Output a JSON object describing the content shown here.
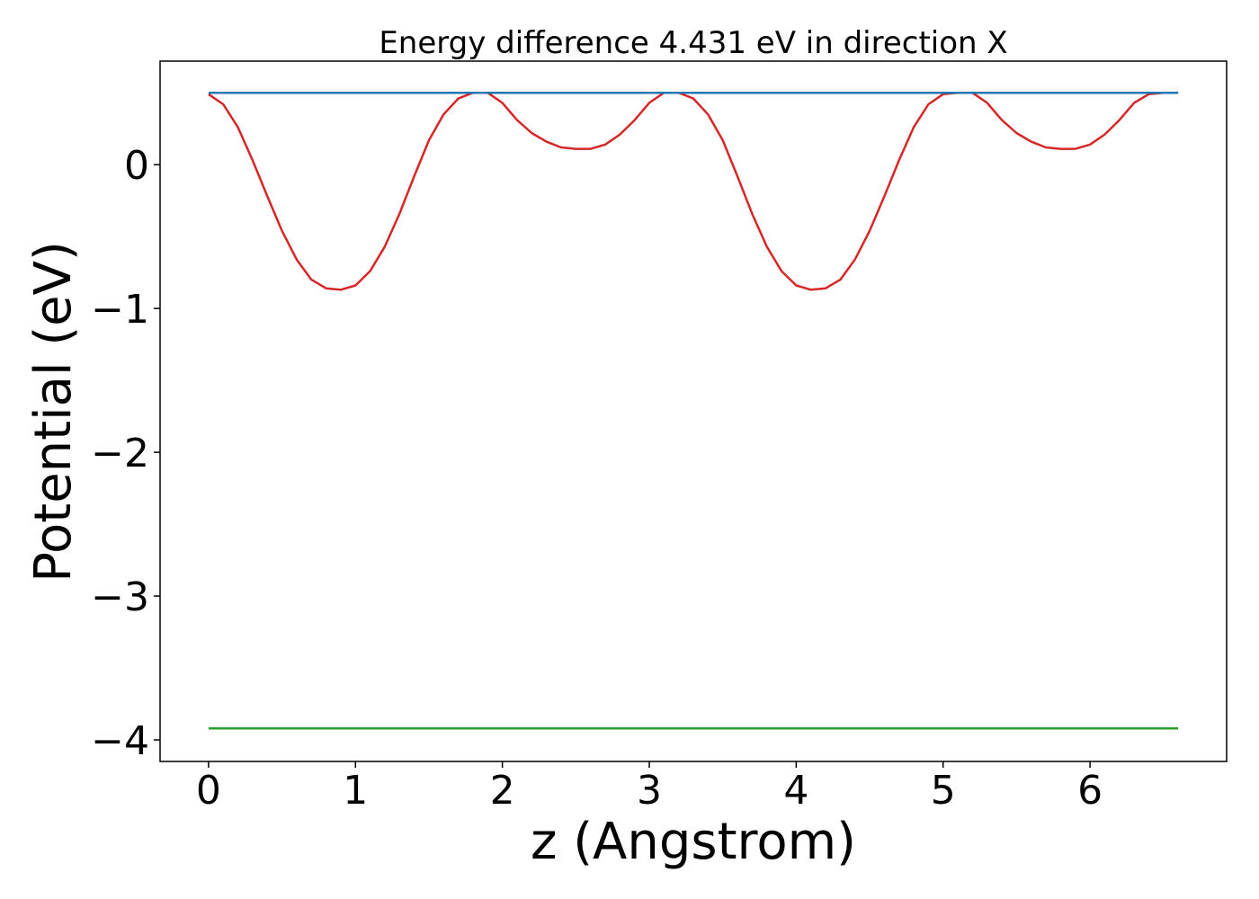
{
  "chart_data": {
    "type": "line",
    "title": "Energy difference 4.431 eV in direction X",
    "xlabel": "z (Angstrom)",
    "ylabel": "Potential (eV)",
    "xlim": [
      -0.33,
      6.93
    ],
    "ylim": [
      -4.15,
      0.72
    ],
    "xticks": [
      0,
      1,
      2,
      3,
      4,
      5,
      6
    ],
    "xtick_labels": [
      "0",
      "1",
      "2",
      "3",
      "4",
      "5",
      "6"
    ],
    "yticks": [
      0,
      -1,
      -2,
      -3,
      -4
    ],
    "ytick_labels": [
      "0",
      "−1",
      "−2",
      "−3",
      "−4"
    ],
    "grid": false,
    "series": [
      {
        "color": "#d62728",
        "x": [
          0.0,
          0.1,
          0.2,
          0.3,
          0.4,
          0.5,
          0.6,
          0.7,
          0.8,
          0.9,
          1.0,
          1.1,
          1.2,
          1.3,
          1.4,
          1.5,
          1.6,
          1.7,
          1.8,
          1.9,
          2.0,
          2.1,
          2.2,
          2.3,
          2.4,
          2.5,
          2.6,
          2.7,
          2.8,
          2.9,
          3.0,
          3.1,
          3.2,
          3.3,
          3.4,
          3.5,
          3.6,
          3.7,
          3.8,
          3.9,
          4.0,
          4.1,
          4.2,
          4.3,
          4.4,
          4.5,
          4.6,
          4.7,
          4.8,
          4.9,
          5.0,
          5.1,
          5.2,
          5.3,
          5.4,
          5.5,
          5.6,
          5.7,
          5.8,
          5.9,
          6.0,
          6.1,
          6.2,
          6.3,
          6.4,
          6.5,
          6.6
        ],
        "y": [
          0.49,
          0.42,
          0.26,
          0.03,
          -0.22,
          -0.46,
          -0.66,
          -0.8,
          -0.86,
          -0.87,
          -0.84,
          -0.74,
          -0.57,
          -0.34,
          -0.08,
          0.17,
          0.35,
          0.46,
          0.5,
          0.5,
          0.43,
          0.31,
          0.22,
          0.16,
          0.12,
          0.11,
          0.11,
          0.14,
          0.21,
          0.31,
          0.43,
          0.5,
          0.5,
          0.46,
          0.35,
          0.17,
          -0.08,
          -0.34,
          -0.57,
          -0.74,
          -0.84,
          -0.87,
          -0.86,
          -0.8,
          -0.66,
          -0.46,
          -0.22,
          0.03,
          0.26,
          0.42,
          0.49,
          0.5,
          0.5,
          0.43,
          0.31,
          0.22,
          0.16,
          0.12,
          0.11,
          0.11,
          0.14,
          0.21,
          0.31,
          0.43,
          0.49,
          0.5,
          0.5
        ]
      },
      {
        "color": "#1f77b4",
        "x": [
          0,
          6.6
        ],
        "y": [
          0.5,
          0.5
        ]
      },
      {
        "color": "#2ca02c",
        "x": [
          0,
          6.6
        ],
        "y": [
          -3.92,
          -3.92
        ]
      }
    ]
  }
}
